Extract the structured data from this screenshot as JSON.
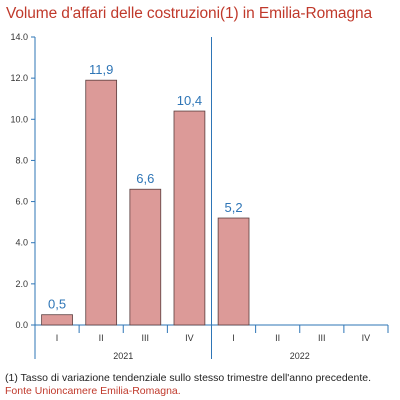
{
  "colors": {
    "title": "#c0392b",
    "bar_fill": "#dc9a98",
    "bar_stroke": "#5a3d3d",
    "data_label": "#2e75b6",
    "divider": "#2e75b6",
    "axis": "#2e75b6",
    "source": "#c0392b"
  },
  "chart_data": {
    "type": "bar",
    "title": "Volume d'affari delle costruzioni(1) in Emilia-Romagna",
    "categories": [
      "I",
      "II",
      "III",
      "IV",
      "I",
      "II",
      "III",
      "IV"
    ],
    "groups": [
      {
        "label": "2021",
        "count": 4
      },
      {
        "label": "2022",
        "count": 4
      }
    ],
    "values": [
      0.5,
      11.9,
      6.6,
      10.4,
      5.2,
      null,
      null,
      null
    ],
    "data_labels": [
      "0,5",
      "11,9",
      "6,6",
      "10,4",
      "5,2",
      "",
      "",
      ""
    ],
    "ylim": [
      0,
      14
    ],
    "yticks": [
      0,
      2,
      4,
      6,
      8,
      10,
      12,
      14
    ],
    "ytick_labels": [
      "0.0",
      "2.0",
      "4.0",
      "6.0",
      "8.0",
      "10.0",
      "12.0",
      "14.0"
    ],
    "xlabel": "",
    "ylabel": "",
    "grid": false,
    "legend": "none"
  },
  "footnote": "(1) Tasso di variazione tendenziale sullo stesso trimestre dell'anno precedente.",
  "source": "Fonte Unioncamere Emilia-Romagna."
}
